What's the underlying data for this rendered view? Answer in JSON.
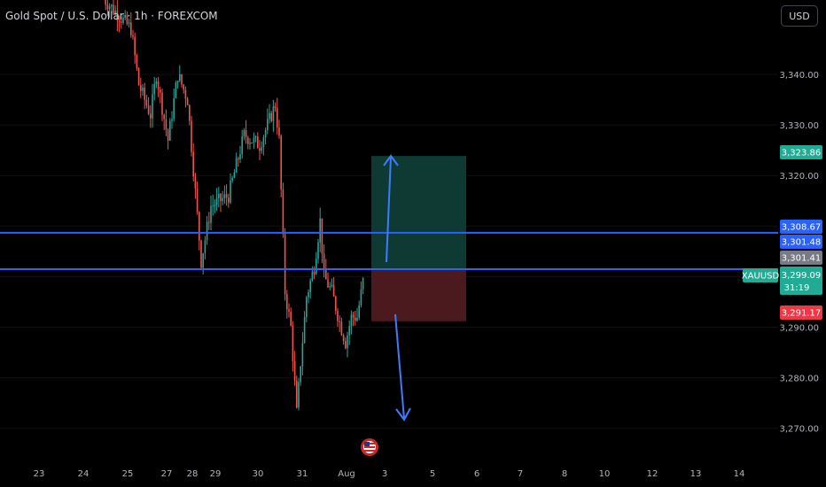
{
  "header": {
    "title": "Gold Spot / U.S. Dollar · 1h · FOREXCOM",
    "currency": "USD"
  },
  "colors": {
    "up": "#26a69a",
    "down": "#ef5350",
    "line": "#2962ff",
    "target_zone": "#0f3a33",
    "stop_zone": "#4a1a1e",
    "arrow": "#3d7bff",
    "tag_green": "#22ab94",
    "tag_red": "#f23645",
    "tag_blue": "#2962ff",
    "tag_gray": "#787b86"
  },
  "chart_data": {
    "type": "candlestick",
    "symbol": "XAUUSD",
    "ylim": [
      3266,
      3355
    ],
    "y_ticks": [
      "3,270.00",
      "3,280.00",
      "3,290.00",
      "3,300.00",
      "3,310.00",
      "3,320.00",
      "3,330.00",
      "3,340.00"
    ],
    "y_tick_values": [
      3270,
      3280,
      3290,
      3300,
      3310,
      3320,
      3330,
      3340
    ],
    "x_ticks": [
      "23",
      "24",
      "25",
      "27",
      "28",
      "29",
      "30",
      "31",
      "Aug",
      "3",
      "5",
      "6",
      "7",
      "8",
      "10",
      "12",
      "13",
      "14"
    ],
    "price_path": [
      [
        0,
        3355
      ],
      [
        14,
        3349
      ],
      [
        18,
        3338
      ],
      [
        24,
        3332
      ],
      [
        27,
        3340
      ],
      [
        33,
        3327
      ],
      [
        38,
        3340
      ],
      [
        43,
        3335
      ],
      [
        50,
        3303
      ],
      [
        55,
        3314
      ],
      [
        64,
        3316
      ],
      [
        72,
        3328
      ],
      [
        80,
        3326
      ],
      [
        88,
        3334
      ],
      [
        90,
        3327
      ],
      [
        93,
        3297
      ],
      [
        96,
        3290
      ],
      [
        99,
        3273
      ],
      [
        101,
        3283
      ],
      [
        104,
        3296
      ],
      [
        108,
        3302
      ],
      [
        111,
        3311
      ],
      [
        113,
        3300
      ],
      [
        117,
        3297
      ],
      [
        121,
        3291
      ],
      [
        124,
        3287
      ],
      [
        127,
        3292
      ],
      [
        130,
        3292
      ],
      [
        133,
        3299
      ]
    ],
    "levels": [
      {
        "price": 3308.67,
        "label": "3,308.67"
      },
      {
        "price": 3301.48,
        "label": "3,301.48"
      }
    ],
    "position": {
      "entry": 3301.41,
      "target": 3323.86,
      "stop": 3291.17
    },
    "tags": {
      "target": "3,323.86",
      "level_high": "3,308.67",
      "level_low": "3,301.48",
      "entry": "3,301.41",
      "last": "3,299.09",
      "countdown": "31:19",
      "stop": "3,291.17"
    }
  }
}
